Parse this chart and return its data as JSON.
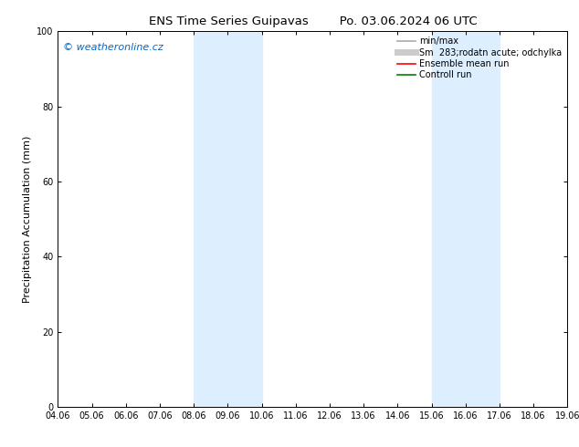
{
  "title": "ENS Time Series Guipavas        Po. 03.06.2024 06 UTC",
  "ylabel": "Precipitation Accumulation (mm)",
  "ylim": [
    0,
    100
  ],
  "yticks": [
    0,
    20,
    40,
    60,
    80,
    100
  ],
  "xtick_labels": [
    "04.06",
    "05.06",
    "06.06",
    "07.06",
    "08.06",
    "09.06",
    "10.06",
    "11.06",
    "12.06",
    "13.06",
    "14.06",
    "15.06",
    "16.06",
    "17.06",
    "18.06",
    "19.06"
  ],
  "xtick_positions": [
    4.06,
    5.06,
    6.06,
    7.06,
    8.06,
    9.06,
    10.06,
    11.06,
    12.06,
    13.06,
    14.06,
    15.06,
    16.06,
    17.06,
    18.06,
    19.06
  ],
  "shaded_regions": [
    {
      "x_start": 8.06,
      "x_end": 10.06
    },
    {
      "x_start": 15.06,
      "x_end": 17.06
    }
  ],
  "shaded_color": "#ddeeff",
  "watermark_text": "© weatheronline.cz",
  "watermark_color": "#0066cc",
  "legend_entries": [
    {
      "label": "min/max",
      "color": "#aaaaaa",
      "lw": 1.2
    },
    {
      "label": "Sm  283;rodatn acute; odchylka",
      "color": "#cccccc",
      "lw": 5
    },
    {
      "label": "Ensemble mean run",
      "color": "red",
      "lw": 1.2
    },
    {
      "label": "Controll run",
      "color": "green",
      "lw": 1.2
    }
  ],
  "bg_color": "#ffffff",
  "axes_bg_color": "#ffffff",
  "title_fontsize": 9.5,
  "tick_fontsize": 7,
  "ylabel_fontsize": 8,
  "watermark_fontsize": 8,
  "legend_fontsize": 7
}
